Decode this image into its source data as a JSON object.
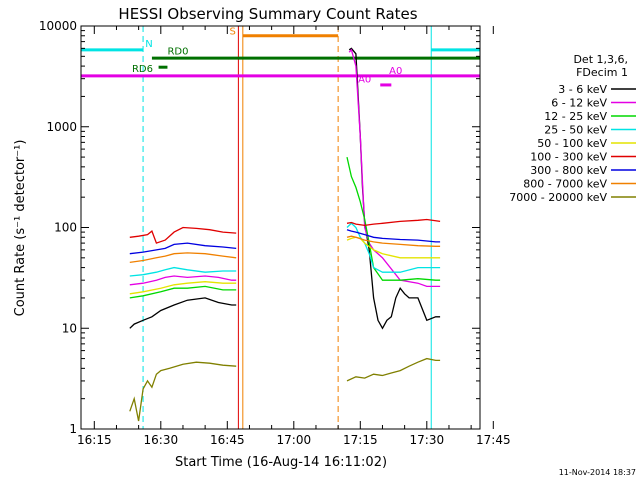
{
  "chart_data": {
    "type": "line",
    "title": "HESSI Observing Summary Count Rates",
    "xlabel": "Start Time (16-Aug-14 16:11:02)",
    "ylabel": "Count Rate (s⁻¹ detector⁻¹)",
    "y_scale": "log",
    "ylim": [
      1,
      10000
    ],
    "xlim_min": [
      12,
      102
    ],
    "x_ticks": [
      {
        "t": 15,
        "label": "16:15"
      },
      {
        "t": 30,
        "label": "16:30"
      },
      {
        "t": 45,
        "label": "16:45"
      },
      {
        "t": 60,
        "label": "17:00"
      },
      {
        "t": 75,
        "label": "17:15"
      },
      {
        "t": 90,
        "label": "17:30"
      },
      {
        "t": 105,
        "label": "17:45"
      }
    ],
    "y_ticks": [
      {
        "v": 1,
        "label": "1"
      },
      {
        "v": 10,
        "label": "10"
      },
      {
        "v": 100,
        "label": "100"
      },
      {
        "v": 1000,
        "label": "1000"
      },
      {
        "v": 10000,
        "label": "10000"
      }
    ],
    "legend": {
      "placement": "right",
      "header": [
        "Det 1,3,6,",
        "FDecim 1"
      ],
      "entries": [
        {
          "label": "3 - 6 keV",
          "color": "#000000"
        },
        {
          "label": "6 - 12 keV",
          "color": "#e400e4"
        },
        {
          "label": "12 - 25 keV",
          "color": "#00d800"
        },
        {
          "label": "25 - 50 keV",
          "color": "#00e4e4"
        },
        {
          "label": "50 - 100 keV",
          "color": "#e4e400"
        },
        {
          "label": "100 - 300 keV",
          "color": "#e00000"
        },
        {
          "label": "300 - 800 keV",
          "color": "#0000e0"
        },
        {
          "label": "800 - 7000 keV",
          "color": "#f08000"
        },
        {
          "label": "7000 - 20000 keV",
          "color": "#808000"
        }
      ]
    },
    "series": [
      {
        "name": "3 - 6 keV",
        "color": "#000000",
        "segments": [
          {
            "x": [
              23,
              24,
              26,
              28,
              30,
              33,
              36,
              40,
              43,
              46,
              47
            ],
            "y": [
              10,
              11,
              12,
              13,
              15,
              17,
              19,
              20,
              18,
              17,
              17
            ]
          },
          {
            "x": [
              72.5,
              73,
              74,
              75,
              75.5,
              76,
              77,
              78,
              79,
              80,
              81,
              82,
              83,
              84,
              85,
              86,
              87,
              88,
              90,
              92,
              93
            ],
            "y": [
              5800,
              6000,
              5300,
              800,
              250,
              110,
              60,
              20,
              12,
              10,
              12,
              13,
              20,
              25,
              22,
              20,
              20,
              20,
              12,
              13,
              13
            ]
          }
        ]
      },
      {
        "name": "6 - 12 keV",
        "color": "#e400e4",
        "segments": [
          {
            "x": [
              23,
              26,
              29,
              31,
              33,
              36,
              40,
              43,
              46,
              47
            ],
            "y": [
              27,
              28,
              30,
              32,
              33,
              32,
              33,
              32,
              30,
              30
            ]
          },
          {
            "x": [
              72.5,
              73,
              74,
              75,
              76,
              77,
              78,
              80,
              84,
              88,
              90,
              93
            ],
            "y": [
              5500,
              5800,
              4000,
              800,
              100,
              70,
              60,
              50,
              30,
              28,
              26,
              26
            ]
          }
        ]
      },
      {
        "name": "12 - 25 keV",
        "color": "#00d800",
        "segments": [
          {
            "x": [
              23,
              26,
              30,
              33,
              36,
              40,
              44,
              47
            ],
            "y": [
              20,
              21,
              23,
              25,
              25,
              26,
              24,
              24
            ]
          },
          {
            "x": [
              72,
              73,
              74,
              75,
              76,
              77,
              78,
              80,
              84,
              88,
              92,
              93
            ],
            "y": [
              500,
              320,
              250,
              180,
              120,
              70,
              40,
              30,
              30,
              31,
              30,
              30
            ]
          }
        ]
      },
      {
        "name": "25 - 50 keV",
        "color": "#00e4e4",
        "segments": [
          {
            "x": [
              23,
              26,
              29,
              31,
              33,
              36,
              40,
              44,
              47
            ],
            "y": [
              33,
              34,
              36,
              38,
              40,
              38,
              36,
              37,
              37
            ]
          },
          {
            "x": [
              72,
              73,
              74,
              75,
              76,
              77,
              78,
              80,
              84,
              88,
              92,
              93
            ],
            "y": [
              100,
              110,
              100,
              80,
              70,
              55,
              40,
              36,
              36,
              40,
              40,
              40
            ]
          }
        ]
      },
      {
        "name": "50 - 100 keV",
        "color": "#e4e400",
        "segments": [
          {
            "x": [
              23,
              26,
              30,
              33,
              36,
              40,
              44,
              47
            ],
            "y": [
              22,
              23,
              25,
              27,
              28,
              29,
              28,
              28
            ]
          },
          {
            "x": [
              72,
              73,
              74,
              75,
              76,
              78,
              80,
              84,
              88,
              92,
              93
            ],
            "y": [
              75,
              78,
              80,
              78,
              70,
              60,
              55,
              50,
              50,
              50,
              50
            ]
          }
        ]
      },
      {
        "name": "100 - 300 keV",
        "color": "#e00000",
        "segments": [
          {
            "x": [
              23,
              25,
              27,
              28,
              29,
              31,
              33,
              35,
              38,
              41,
              44,
              47
            ],
            "y": [
              80,
              82,
              85,
              92,
              70,
              75,
              90,
              100,
              98,
              95,
              90,
              88
            ]
          },
          {
            "x": [
              72,
              73,
              74,
              76,
              78,
              80,
              84,
              88,
              90,
              93
            ],
            "y": [
              110,
              112,
              108,
              105,
              108,
              110,
              115,
              118,
              120,
              115
            ]
          }
        ]
      },
      {
        "name": "300 - 800 keV",
        "color": "#0000e0",
        "segments": [
          {
            "x": [
              23,
              26,
              29,
              31,
              33,
              36,
              40,
              44,
              47
            ],
            "y": [
              55,
              57,
              60,
              62,
              68,
              70,
              66,
              64,
              62
            ]
          },
          {
            "x": [
              72,
              73,
              74,
              76,
              78,
              80,
              84,
              88,
              92,
              93
            ],
            "y": [
              95,
              92,
              90,
              85,
              80,
              78,
              76,
              75,
              72,
              72
            ]
          }
        ]
      },
      {
        "name": "800 - 7000 keV",
        "color": "#f08000",
        "segments": [
          {
            "x": [
              23,
              26,
              29,
              31,
              33,
              36,
              40,
              44,
              47
            ],
            "y": [
              45,
              47,
              50,
              52,
              55,
              56,
              55,
              52,
              50
            ]
          },
          {
            "x": [
              72,
              73,
              74,
              76,
              78,
              80,
              84,
              88,
              92,
              93
            ],
            "y": [
              80,
              82,
              80,
              75,
              72,
              70,
              68,
              66,
              65,
              65
            ]
          }
        ]
      },
      {
        "name": "7000 - 20000 keV",
        "color": "#808000",
        "segments": [
          {
            "x": [
              23,
              24,
              25,
              26,
              27,
              28,
              29,
              30,
              32,
              35,
              38,
              41,
              44,
              47
            ],
            "y": [
              1.5,
              2,
              1.2,
              2.5,
              3,
              2.6,
              3.5,
              3.8,
              4,
              4.4,
              4.6,
              4.5,
              4.3,
              4.2
            ]
          },
          {
            "x": [
              72,
              74,
              76,
              78,
              80,
              82,
              84,
              86,
              88,
              90,
              92,
              93
            ],
            "y": [
              3,
              3.3,
              3.2,
              3.5,
              3.4,
              3.6,
              3.8,
              4.2,
              4.6,
              5,
              4.8,
              4.8
            ]
          }
        ]
      }
    ],
    "state_bars": [
      {
        "label": "N",
        "color": "#00e4e4",
        "x0": 12,
        "x1": 26,
        "y": 5800,
        "label_x": 26.5,
        "label_y": 6200
      },
      {
        "label": "N",
        "color": "#00e4e4",
        "x0": 91,
        "x1": 102,
        "y": 5800,
        "label_x": null,
        "label_y": null
      },
      {
        "label": "S",
        "color": "#f08000",
        "x0": 48.5,
        "x1": 70,
        "y": 8000,
        "label_x": 45.5,
        "label_y": 8200
      },
      {
        "label": "RD0",
        "color": "#007000",
        "x0": 28,
        "x1": 102,
        "y": 4800,
        "label_x": 31.5,
        "label_y": 5200
      },
      {
        "label": "RD6",
        "color": "#007000",
        "x0": 29.5,
        "x1": 31.5,
        "y": 3900,
        "label_x": 23.5,
        "label_y": 3500
      },
      {
        "label": "A0",
        "color": "#e400e4",
        "x0": 12,
        "x1": 102,
        "y": 3200,
        "label_x": 81.5,
        "label_y": 3350
      },
      {
        "label": "A0",
        "color": "#e400e4",
        "x0": 79.5,
        "x1": 82,
        "y": 2600,
        "label_x": 74.5,
        "label_y": 2750
      }
    ],
    "vertical_lines": [
      {
        "t": 12,
        "color": "#00e4e4",
        "style": "solid"
      },
      {
        "t": 26,
        "color": "#00e4e4",
        "style": "dashed"
      },
      {
        "t": 47.5,
        "color": "#e00000",
        "style": "solid"
      },
      {
        "t": 48.5,
        "color": "#f08000",
        "style": "solid"
      },
      {
        "t": 70,
        "color": "#f08000",
        "style": "dashed"
      },
      {
        "t": 91,
        "color": "#00e4e4",
        "style": "solid"
      },
      {
        "t": 102,
        "color": "#00e4e4",
        "style": "dashed"
      }
    ],
    "timestamp": "11-Nov-2014 18:37"
  }
}
